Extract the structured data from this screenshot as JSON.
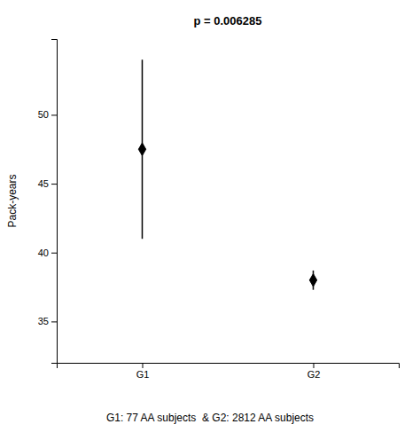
{
  "chart_data": {
    "type": "errorbar",
    "title": "p = 0.006285",
    "xlabel": "G1: 77 AA subjects  & G2: 2812 AA subjects",
    "ylabel": "Pack-years",
    "categories": [
      "G1",
      "G2"
    ],
    "values": [
      47.5,
      38.0
    ],
    "ci_lower": [
      41.0,
      37.3
    ],
    "ci_upper": [
      54.0,
      38.7
    ],
    "ylim": [
      32.0,
      55.5
    ],
    "yticks": [
      35,
      40,
      45,
      50
    ],
    "color": "#000000",
    "marker": "diamond",
    "grid": false
  }
}
